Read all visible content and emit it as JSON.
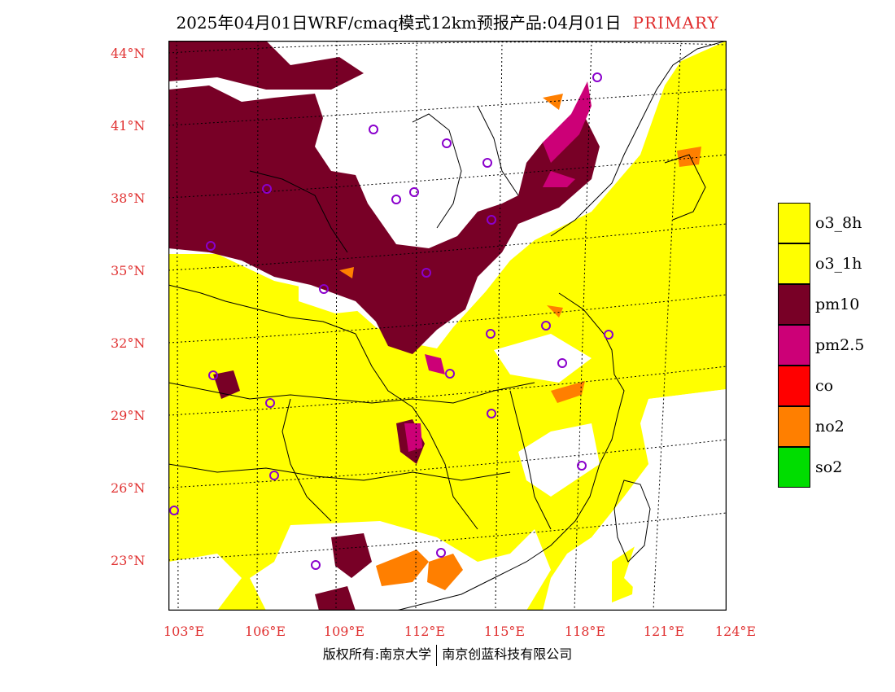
{
  "title": {
    "main": "2025年04月01日WRF/cmaq模式12km预报产品:04月01日",
    "tag": "PRIMARY"
  },
  "axes": {
    "lat_labels": [
      "44°N",
      "41°N",
      "38°N",
      "35°N",
      "32°N",
      "29°N",
      "26°N",
      "23°N"
    ],
    "lon_labels": [
      "103°E",
      "106°E",
      "109°E",
      "112°E",
      "115°E",
      "118°E",
      "121°E",
      "124°E"
    ]
  },
  "legend": [
    {
      "label": "o3_8h",
      "color": "#ffff00"
    },
    {
      "label": "o3_1h",
      "color": "#ffff00"
    },
    {
      "label": "pm10",
      "color": "#780026"
    },
    {
      "label": "pm2.5",
      "color": "#cc0077"
    },
    {
      "label": "co",
      "color": "#ff0000"
    },
    {
      "label": "no2",
      "color": "#ff7f00"
    },
    {
      "label": "so2",
      "color": "#00dd00"
    }
  ],
  "footer": {
    "left": "版权所有:南京大学",
    "right": "南京创蓝科技有限公司"
  }
}
